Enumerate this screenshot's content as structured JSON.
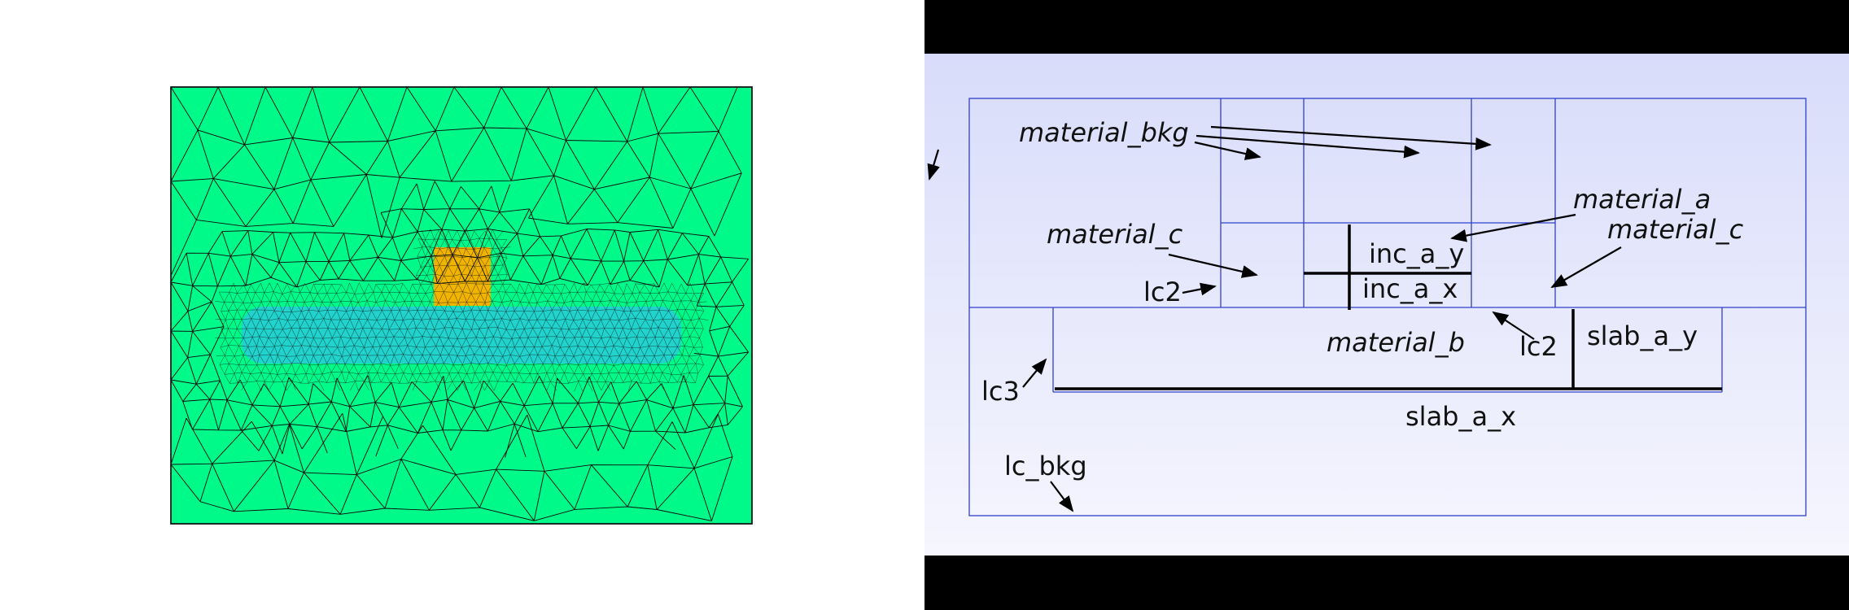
{
  "mesh": {
    "colors": {
      "background_region": "#00fa8a",
      "slab_region": "#22d2cc",
      "inclusion_region": "#f0b400",
      "edges": "#0a0a0a"
    }
  },
  "schematic": {
    "colors": {
      "bar": "#000000",
      "gradient_top": "#d8dcfa",
      "gradient_bottom": "#f6f6fe",
      "line": "#3040c8",
      "thick_line": "#000000",
      "text": "#111111"
    },
    "labels": {
      "material_bkg": "material_bkg",
      "material_a": "material_a",
      "material_c_left": "material_c",
      "material_c_right": "material_c",
      "material_b": "material_b",
      "inc_a_y": "inc_a_y",
      "inc_a_x": "inc_a_x",
      "lc2_left": "lc2",
      "lc2_right": "lc2",
      "lc3": "lc3",
      "lc_bkg": "lc_bkg",
      "slab_a_y": "slab_a_y",
      "slab_a_x": "slab_a_x"
    }
  }
}
